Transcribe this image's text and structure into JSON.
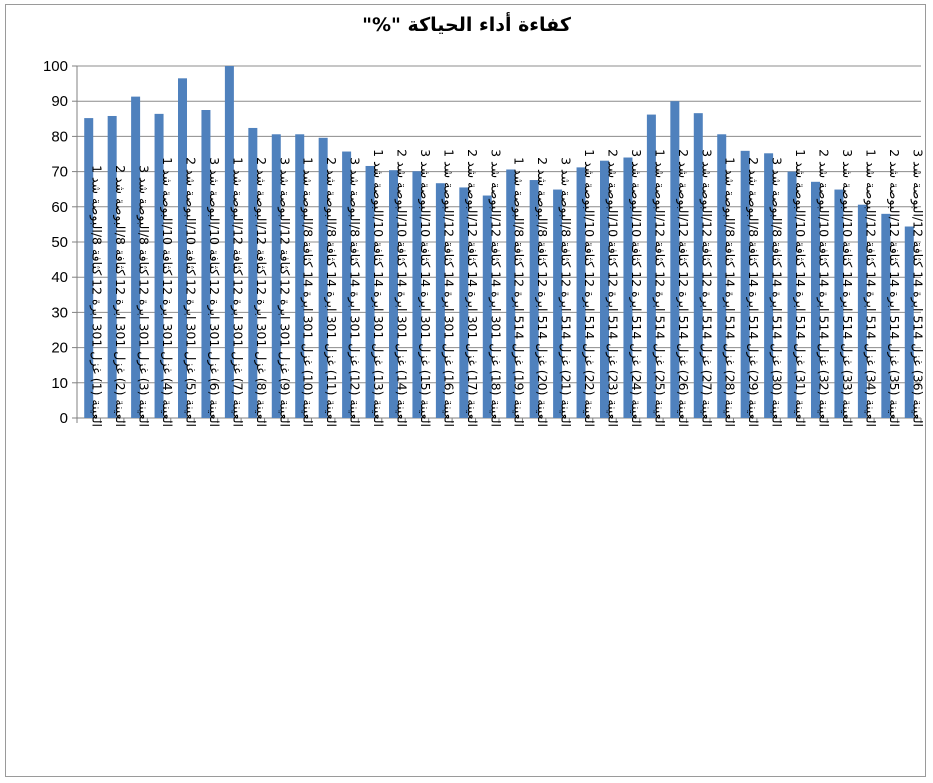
{
  "chart_data": {
    "type": "bar",
    "title": "كفاءة أداء الحياكة \"%\"",
    "xlabel": "",
    "ylabel": "",
    "ylim": [
      0,
      100
    ],
    "yticks": [
      0,
      10,
      20,
      30,
      40,
      50,
      60,
      70,
      80,
      90,
      100
    ],
    "grid": true,
    "legend": "none",
    "bar_color": "#4F81BD",
    "categories": [
      "العينة (1) غزل 301 ابرة 12 كثافة 8/البوصة شد 1",
      "العينة (2) غزل 301 ابرة 12 كثافة 8/البوصة شد 2",
      "العينة (3) غزل 301 ابرة 12 كثافة 8/البوصة شد 3",
      "العينة (4) غزل 301 ابرة 12 كثافة 10/البوصة شد 1",
      "العينة (5) غزل 301 ابرة 12 كثافة 10/البوصة شد 2",
      "العينة (6) غزل 301 ابرة 12 كثافة 10/البوصة شد 3",
      "العينة (7) غزل 301 ابرة 12 كثافة 12/البوصة شد 1",
      "العينة (8) غزل 301 ابرة 12 كثافة 12/البوصة شد 2",
      "العينة (9) غزل 301 ابرة 12 كثافة 12/البوصة شد 3",
      "العينة (10) غزل 301 ابرة 14 كثافة 8/البوصة شد 1",
      "العينة (11) غزل 301 ابرة 14 كثافة 8/البوصة شد 2",
      "العينة (12) غزل 301 ابرة 14 كثافة 8/البوصة شد 3",
      "العينة (13) غزل 301 ابرة 14 كثافة 10/البوصة شد 1",
      "العينة (14) غزل 301 ابرة 14 كثافة 10/البوصة شد 2",
      "العينة (15) غزل 301 ابرة 14 كثافة 10/البوصة شد 3",
      "العينة (16) غزل 301 ابرة 14 كثافة 12/البوصة شد 1",
      "العينة (17) غزل 301 ابرة 14 كثافة 12/البوصة شد 2",
      "العينة (18) غزل 301 ابرة 14 كثافة 12/البوصة شد 3",
      "العينة (19) غزل 514 ابرة 12 كثافة 8/البوصة شد 1",
      "العينة (20) غزل 514 ابرة 12 كثافة 8/البوصة شد 2",
      "العينة (21) غزل 514 ابرة 12 كثافة 8/البوصة شد 3",
      "العينة (22) غزل 514 ابرة 12 كثافة 10/البوصة شد 1",
      "العينة (23) غزل 514 ابرة 12 كثافة 10/البوصة شد 2",
      "العينة (24) غزل 514 ابرة 12 كثافة 10/البوصة شد 3",
      "العينة (25) غزل 514 ابرة 12 كثافة 12/البوصة شد 1",
      "العينة (26) غزل 514 ابرة 12 كثافة 12/البوصة شد 2",
      "العينة (27) غزل 514 ابرة 12 كثافة 12/البوصة شد 3",
      "العينة (28) غزل 514 ابرة 14 كثافة 8/البوصة شد 1",
      "العينة (29) غزل 514 ابرة 14 كثافة 8/البوصة شد 2",
      "العينة (30) غزل 514 ابرة 14 كثافة 8/البوصة شد 3",
      "العينة (31) غزل 514 ابرة 14 كثافة 10/البوصة شد 1",
      "العينة (32) غزل 514 ابرة 14 كثافة 10/البوصة شد 2",
      "العينة (33) غزل 514 ابرة 14 كثافة 10/البوصة شد 3",
      "العينة (34) غزل 514 ابرة 14 كثافة 12/البوصة شد 1",
      "العينة (35) غزل 514 ابرة 14 كثافة 12/البوصة شد 2",
      "العينة (36) غزل 514 ابرة 14 كثافة 12/البوصة شد 3"
    ],
    "values": [
      85.2,
      85.8,
      91.3,
      86.4,
      96.5,
      87.5,
      100,
      82.4,
      80.6,
      80.6,
      79.6,
      75.7,
      71.6,
      70.4,
      70.1,
      66.7,
      65.5,
      63.2,
      70.6,
      67.6,
      64.9,
      71.2,
      73.1,
      74.0,
      86.2,
      90.0,
      86.6,
      80.6,
      75.9,
      75.2,
      70.0,
      67.1,
      64.9,
      60.6,
      58.0,
      54.4
    ]
  }
}
